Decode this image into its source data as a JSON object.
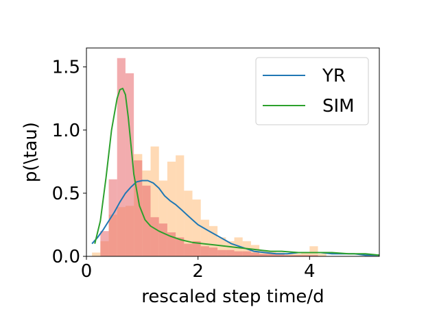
{
  "chart_data": {
    "type": "histogram+kde",
    "xlabel": "rescaled step time/d",
    "ylabel": "p(\\tau)",
    "xlim": [
      0,
      5.25
    ],
    "ylim": [
      0,
      1.65
    ],
    "xticks": [
      0,
      2,
      4
    ],
    "xtick_labels": [
      "0",
      "2",
      "4"
    ],
    "yticks": [
      0.0,
      0.5,
      1.0,
      1.5
    ],
    "ytick_labels": [
      "0.0",
      "0.5",
      "1.0",
      "1.5"
    ],
    "grid": false,
    "legend_position": "top-right",
    "legend": [
      {
        "label": "YR",
        "color": "#1f77b4"
      },
      {
        "label": "SIM",
        "color": "#2ca02c"
      }
    ],
    "histograms": [
      {
        "color": "#ffbb78",
        "bin_width": 0.15,
        "bins": [
          [
            0.1,
            0.03
          ],
          [
            0.25,
            0.12
          ],
          [
            0.4,
            0.33
          ],
          [
            0.55,
            0.39
          ],
          [
            0.7,
            0.4
          ],
          [
            0.85,
            0.81
          ],
          [
            1.0,
            0.68
          ],
          [
            1.15,
            0.87
          ],
          [
            1.3,
            0.6
          ],
          [
            1.45,
            0.75
          ],
          [
            1.6,
            0.8
          ],
          [
            1.75,
            0.52
          ],
          [
            1.9,
            0.45
          ],
          [
            2.05,
            0.29
          ],
          [
            2.2,
            0.24
          ],
          [
            2.35,
            0.15
          ],
          [
            2.5,
            0.12
          ],
          [
            2.65,
            0.15
          ],
          [
            2.8,
            0.12
          ],
          [
            2.95,
            0.09
          ],
          [
            3.1,
            0.05
          ],
          [
            3.25,
            0.04
          ],
          [
            3.4,
            0.03
          ],
          [
            3.55,
            0.02
          ],
          [
            3.7,
            0.02
          ],
          [
            3.85,
            0.03
          ],
          [
            4.0,
            0.08
          ],
          [
            4.15,
            0.02
          ]
        ]
      },
      {
        "color": "#e8686b",
        "bin_width": 0.15,
        "bins": [
          [
            0.25,
            0.2
          ],
          [
            0.4,
            0.61
          ],
          [
            0.55,
            1.57
          ],
          [
            0.7,
            1.45
          ],
          [
            0.85,
            0.76
          ],
          [
            1.0,
            0.56
          ],
          [
            1.15,
            0.31
          ],
          [
            1.3,
            0.26
          ],
          [
            1.45,
            0.19
          ],
          [
            1.6,
            0.15
          ],
          [
            1.75,
            0.1
          ],
          [
            1.9,
            0.12
          ],
          [
            2.05,
            0.08
          ],
          [
            2.2,
            0.07
          ],
          [
            2.35,
            0.05
          ],
          [
            2.5,
            0.05
          ],
          [
            2.65,
            0.04
          ],
          [
            2.8,
            0.04
          ],
          [
            2.95,
            0.03
          ],
          [
            3.1,
            0.02
          ],
          [
            3.25,
            0.02
          ],
          [
            3.4,
            0.02
          ],
          [
            3.55,
            0.01
          ],
          [
            3.7,
            0.01
          ],
          [
            3.85,
            0.01
          ],
          [
            4.0,
            0.01
          ]
        ]
      }
    ],
    "series": [
      {
        "name": "YR",
        "color": "#1f77b4",
        "x": [
          0.1,
          0.2,
          0.3,
          0.4,
          0.5,
          0.6,
          0.7,
          0.8,
          0.9,
          1.0,
          1.1,
          1.2,
          1.3,
          1.4,
          1.5,
          1.6,
          1.7,
          1.8,
          1.9,
          2.0,
          2.2,
          2.4,
          2.6,
          2.8,
          3.0,
          3.2,
          3.4,
          3.6,
          3.8,
          4.0,
          4.2,
          4.4,
          4.6,
          4.8,
          5.0,
          5.25
        ],
        "y": [
          0.1,
          0.15,
          0.21,
          0.28,
          0.35,
          0.43,
          0.5,
          0.55,
          0.59,
          0.6,
          0.6,
          0.58,
          0.54,
          0.48,
          0.44,
          0.41,
          0.37,
          0.33,
          0.29,
          0.25,
          0.2,
          0.15,
          0.1,
          0.07,
          0.04,
          0.03,
          0.02,
          0.02,
          0.03,
          0.03,
          0.03,
          0.02,
          0.02,
          0.02,
          0.01,
          0.01
        ]
      },
      {
        "name": "SIM",
        "color": "#2ca02c",
        "x": [
          0.15,
          0.25,
          0.35,
          0.45,
          0.55,
          0.6,
          0.65,
          0.7,
          0.75,
          0.85,
          0.95,
          1.05,
          1.15,
          1.3,
          1.5,
          1.7,
          1.9,
          2.1,
          2.3,
          2.5,
          2.7,
          2.9,
          3.1,
          3.3,
          3.5,
          3.8,
          4.1,
          4.4,
          4.7,
          5.0,
          5.25
        ],
        "y": [
          0.1,
          0.28,
          0.62,
          1.0,
          1.25,
          1.32,
          1.33,
          1.28,
          1.1,
          0.65,
          0.4,
          0.29,
          0.24,
          0.2,
          0.16,
          0.13,
          0.11,
          0.1,
          0.09,
          0.08,
          0.07,
          0.06,
          0.05,
          0.04,
          0.04,
          0.03,
          0.03,
          0.03,
          0.02,
          0.02,
          0.01
        ]
      }
    ]
  }
}
